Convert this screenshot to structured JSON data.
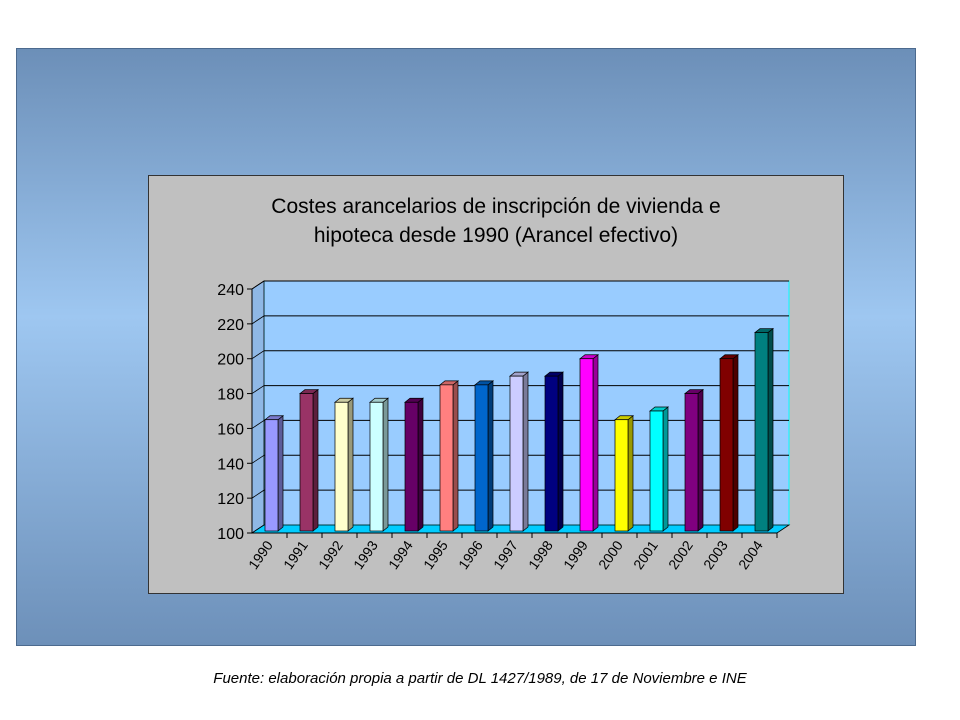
{
  "chart_data": {
    "type": "bar",
    "title": "Costes arancelarios de inscripción de vivienda e hipoteca desde 1990 (Arancel efectivo)",
    "title_lines": [
      "Costes arancelarios de inscripción de vivienda e",
      "hipoteca desde 1990 (Arancel efectivo)"
    ],
    "categories": [
      "1990",
      "1991",
      "1992",
      "1993",
      "1994",
      "1995",
      "1996",
      "1997",
      "1998",
      "1999",
      "2000",
      "2001",
      "2002",
      "2003",
      "2004"
    ],
    "values": [
      165,
      180,
      175,
      175,
      175,
      185,
      185,
      190,
      190,
      200,
      165,
      170,
      180,
      200,
      215
    ],
    "colors": [
      "#9999ff",
      "#993366",
      "#ffffcc",
      "#ccffff",
      "#660066",
      "#ff8080",
      "#0066cc",
      "#ccccff",
      "#000080",
      "#ff00ff",
      "#ffff00",
      "#00ffff",
      "#800080",
      "#800000",
      "#008080"
    ],
    "ylim": [
      100,
      240
    ],
    "yticks": [
      "100",
      "120",
      "140",
      "160",
      "180",
      "200",
      "220",
      "240"
    ],
    "xlabel": "",
    "ylabel": "",
    "grid": true,
    "legend": "none",
    "plot_background": "#99ccff",
    "floor_color": "#00ccff"
  },
  "source_note": "Fuente: elaboración propia a partir de DL 1427/1989, de 17 de Noviembre e INE"
}
